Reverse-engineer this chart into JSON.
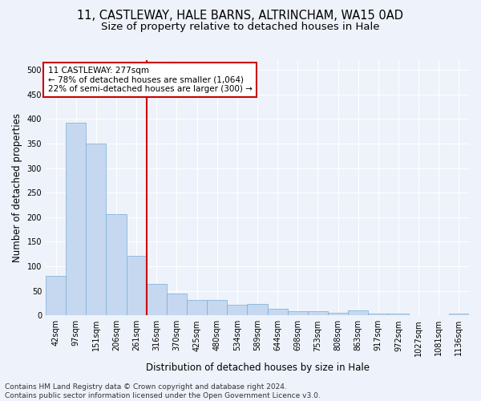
{
  "title_line1": "11, CASTLEWAY, HALE BARNS, ALTRINCHAM, WA15 0AD",
  "title_line2": "Size of property relative to detached houses in Hale",
  "xlabel": "Distribution of detached houses by size in Hale",
  "ylabel": "Number of detached properties",
  "categories": [
    "42sqm",
    "97sqm",
    "151sqm",
    "206sqm",
    "261sqm",
    "316sqm",
    "370sqm",
    "425sqm",
    "480sqm",
    "534sqm",
    "589sqm",
    "644sqm",
    "698sqm",
    "753sqm",
    "808sqm",
    "863sqm",
    "917sqm",
    "972sqm",
    "1027sqm",
    "1081sqm",
    "1136sqm"
  ],
  "values": [
    80,
    393,
    350,
    206,
    122,
    64,
    44,
    32,
    32,
    22,
    24,
    14,
    9,
    9,
    6,
    10,
    3,
    4,
    1,
    1,
    4
  ],
  "bar_color": "#c5d8f0",
  "bar_edge_color": "#7aadd4",
  "vline_x": 4.5,
  "vline_color": "#cc0000",
  "annotation_line1": "11 CASTLEWAY: 277sqm",
  "annotation_line2": "← 78% of detached houses are smaller (1,064)",
  "annotation_line3": "22% of semi-detached houses are larger (300) →",
  "annotation_box_color": "#ffffff",
  "annotation_box_edge": "#cc0000",
  "footer_line1": "Contains HM Land Registry data © Crown copyright and database right 2024.",
  "footer_line2": "Contains public sector information licensed under the Open Government Licence v3.0.",
  "ylim": [
    0,
    520
  ],
  "yticks": [
    0,
    50,
    100,
    150,
    200,
    250,
    300,
    350,
    400,
    450,
    500
  ],
  "background_color": "#eef2fa",
  "grid_color": "#ffffff",
  "title_fontsize": 10.5,
  "subtitle_fontsize": 9.5,
  "axis_label_fontsize": 8.5,
  "tick_fontsize": 7,
  "annotation_fontsize": 7.5,
  "footer_fontsize": 6.5
}
